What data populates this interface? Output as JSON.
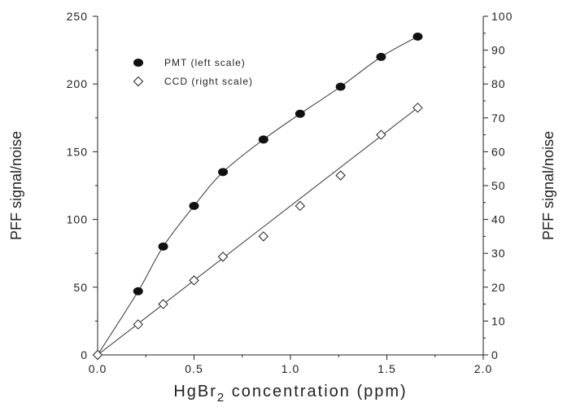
{
  "chart_data": {
    "type": "scatter",
    "xlabel_main": "HgBr",
    "xlabel_sub": "2",
    "xlabel_rest": " concentration (ppm)",
    "ylabel_left": "PFF signal/noise",
    "ylabel_right": "PFF signal/noise",
    "xlim": [
      0,
      2.0
    ],
    "ylim_left": [
      0,
      250
    ],
    "ylim_right": [
      0,
      100
    ],
    "x_ticks": [
      "0.0",
      "0.5",
      "1.0",
      "1.5",
      "2.0"
    ],
    "y_left_ticks": [
      "0",
      "50",
      "100",
      "150",
      "200",
      "250"
    ],
    "y_right_ticks": [
      "0",
      "10",
      "20",
      "30",
      "40",
      "50",
      "60",
      "70",
      "80",
      "90",
      "100"
    ],
    "grid": false,
    "legend_position": "top-left",
    "series": [
      {
        "name": "PMT (left scale)",
        "axis": "left",
        "marker": "filled-circle",
        "x": [
          0.0,
          0.21,
          0.34,
          0.5,
          0.65,
          0.86,
          1.05,
          1.26,
          1.47,
          1.66
        ],
        "y": [
          0,
          47,
          80,
          110,
          135,
          159,
          178,
          198,
          220,
          235
        ]
      },
      {
        "name": "CCD (right scale)",
        "axis": "right",
        "marker": "open-diamond",
        "x": [
          0.0,
          0.21,
          0.34,
          0.5,
          0.65,
          0.86,
          1.05,
          1.26,
          1.47,
          1.66
        ],
        "y": [
          0,
          9,
          15,
          22,
          29,
          35,
          44,
          53,
          65,
          73
        ]
      }
    ]
  }
}
